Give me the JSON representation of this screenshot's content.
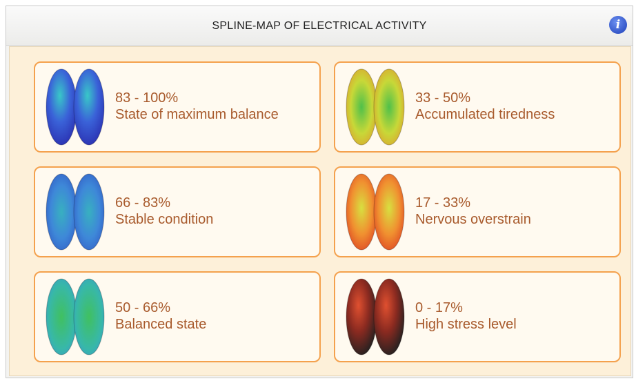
{
  "header": {
    "title": "SPLINE-MAP OF ELECTRICAL ACTIVITY",
    "info_icon": "i"
  },
  "cards": [
    {
      "range": "83 - 100%",
      "label": "State of maximum balance"
    },
    {
      "range": "33 - 50%",
      "label": "Accumulated tiredness"
    },
    {
      "range": "66 - 83%",
      "label": "Stable condition"
    },
    {
      "range": "17 - 33%",
      "label": "Nervous overstrain"
    },
    {
      "range": "50 - 66%",
      "label": "Balanced state"
    },
    {
      "range": "0 - 17%",
      "label": "High stress level"
    }
  ]
}
